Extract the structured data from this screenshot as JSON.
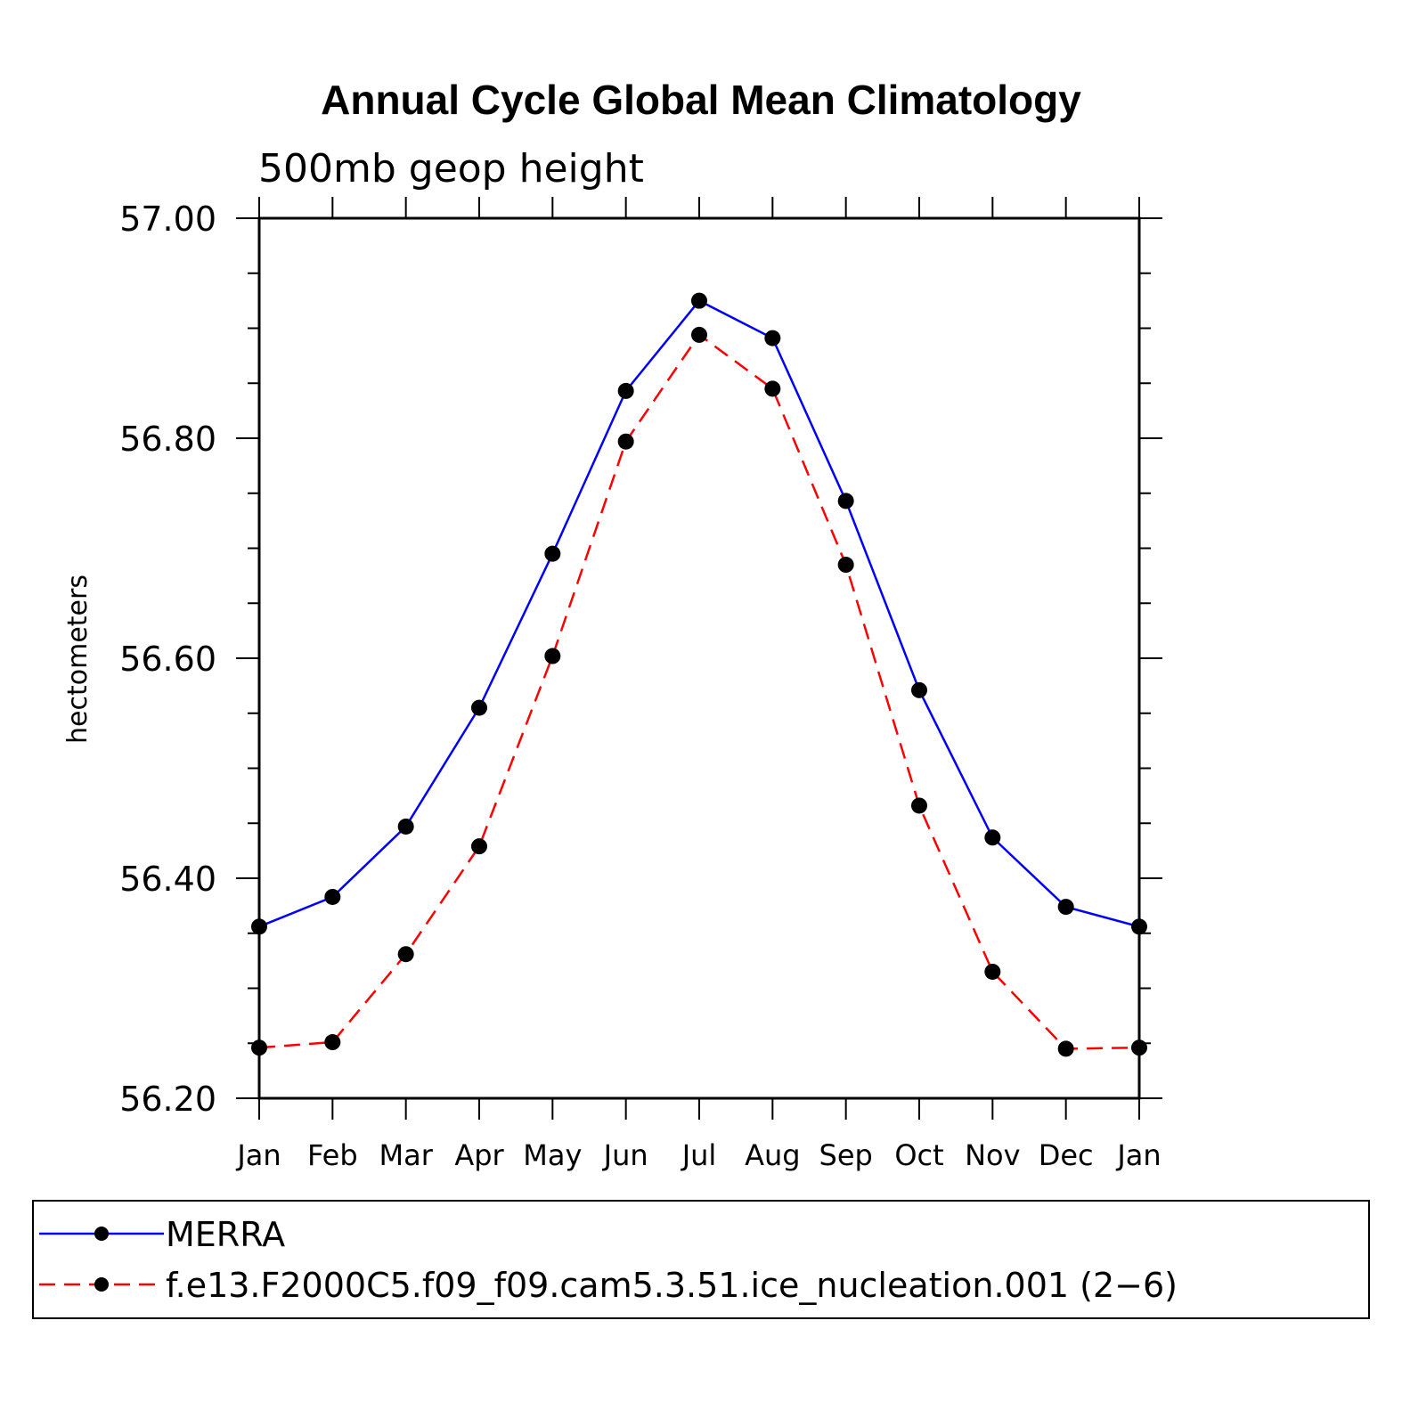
{
  "chart_data": {
    "type": "line",
    "title": "Annual Cycle Global Mean Climatology",
    "subtitle": "500mb geop height",
    "xlabel": "",
    "ylabel": "hectometers",
    "categories": [
      "Jan",
      "Feb",
      "Mar",
      "Apr",
      "May",
      "Jun",
      "Jul",
      "Aug",
      "Sep",
      "Oct",
      "Nov",
      "Dec",
      "Jan"
    ],
    "ylim": [
      56.2,
      57.0
    ],
    "yticks": [
      "56.20",
      "56.40",
      "56.60",
      "56.80",
      "57.00"
    ],
    "grid": false,
    "legend_position": "bottom",
    "series": [
      {
        "name": "MERRA",
        "color": "#0000ff",
        "dash": "solid",
        "marker": "filled-circle",
        "values": [
          56.356,
          56.383,
          56.447,
          56.555,
          56.695,
          56.843,
          56.925,
          56.891,
          56.743,
          56.571,
          56.437,
          56.374,
          56.356
        ]
      },
      {
        "name": "f.e13.F2000C5.f09_f09.cam5.3.51.ice_nucleation.001 (2−6)",
        "color": "#ff0000",
        "dash": "dashed",
        "marker": "filled-circle",
        "values": [
          56.246,
          56.251,
          56.331,
          56.429,
          56.602,
          56.797,
          56.894,
          56.845,
          56.685,
          56.466,
          56.315,
          56.245,
          56.246
        ]
      }
    ]
  }
}
